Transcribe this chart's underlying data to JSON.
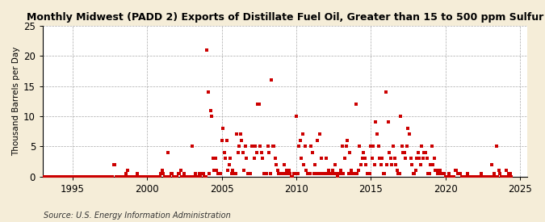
{
  "title": "Monthly Midwest (PADD 2) Exports of Distillate Fuel Oil, Greater than 15 to 500 ppm Sulfur",
  "ylabel": "Thousand Barrels per Day",
  "source": "Source: U.S. Energy Information Administration",
  "fig_bg_color": "#f5edd8",
  "plot_bg_color": "#ffffff",
  "marker_color": "#cc0000",
  "xlim": [
    1993.0,
    2025.5
  ],
  "ylim": [
    0,
    25
  ],
  "yticks": [
    0,
    5,
    10,
    15,
    20,
    25
  ],
  "xticks": [
    1995,
    2000,
    2005,
    2010,
    2015,
    2020,
    2025
  ],
  "data": [
    [
      1993.0,
      0
    ],
    [
      1993.083,
      0
    ],
    [
      1993.167,
      0
    ],
    [
      1993.25,
      0
    ],
    [
      1993.333,
      0
    ],
    [
      1993.417,
      0
    ],
    [
      1993.5,
      0
    ],
    [
      1993.583,
      0
    ],
    [
      1993.667,
      0
    ],
    [
      1993.75,
      0
    ],
    [
      1993.833,
      0
    ],
    [
      1993.917,
      0
    ],
    [
      1994.0,
      0
    ],
    [
      1994.083,
      0
    ],
    [
      1994.167,
      0
    ],
    [
      1994.25,
      0
    ],
    [
      1994.333,
      0
    ],
    [
      1994.417,
      0
    ],
    [
      1994.5,
      0
    ],
    [
      1994.583,
      0
    ],
    [
      1994.667,
      0
    ],
    [
      1994.75,
      0
    ],
    [
      1994.833,
      0
    ],
    [
      1994.917,
      0
    ],
    [
      1995.0,
      0
    ],
    [
      1995.083,
      0
    ],
    [
      1995.167,
      0
    ],
    [
      1995.25,
      0
    ],
    [
      1995.333,
      0
    ],
    [
      1995.417,
      0
    ],
    [
      1995.5,
      0
    ],
    [
      1995.583,
      0
    ],
    [
      1995.667,
      0
    ],
    [
      1995.75,
      0
    ],
    [
      1995.833,
      0
    ],
    [
      1995.917,
      0
    ],
    [
      1996.0,
      0
    ],
    [
      1996.083,
      0
    ],
    [
      1996.167,
      0
    ],
    [
      1996.25,
      0
    ],
    [
      1996.333,
      0
    ],
    [
      1996.417,
      0
    ],
    [
      1996.5,
      0
    ],
    [
      1996.583,
      0
    ],
    [
      1996.667,
      0
    ],
    [
      1996.75,
      0
    ],
    [
      1996.833,
      0
    ],
    [
      1996.917,
      0
    ],
    [
      1997.0,
      0
    ],
    [
      1997.083,
      0
    ],
    [
      1997.167,
      0
    ],
    [
      1997.25,
      0
    ],
    [
      1997.333,
      0
    ],
    [
      1997.417,
      0
    ],
    [
      1997.5,
      0
    ],
    [
      1997.583,
      0
    ],
    [
      1997.667,
      0
    ],
    [
      1997.75,
      2.0
    ],
    [
      1997.833,
      2.0
    ],
    [
      1997.917,
      0
    ],
    [
      1998.0,
      0
    ],
    [
      1998.083,
      0
    ],
    [
      1998.167,
      0
    ],
    [
      1998.25,
      0
    ],
    [
      1998.333,
      0
    ],
    [
      1998.417,
      0
    ],
    [
      1998.5,
      0
    ],
    [
      1998.583,
      0.5
    ],
    [
      1998.667,
      1.0
    ],
    [
      1998.75,
      0
    ],
    [
      1998.833,
      0
    ],
    [
      1998.917,
      0
    ],
    [
      1999.0,
      0
    ],
    [
      1999.083,
      0
    ],
    [
      1999.167,
      0
    ],
    [
      1999.25,
      0
    ],
    [
      1999.333,
      0.5
    ],
    [
      1999.417,
      0
    ],
    [
      1999.5,
      0
    ],
    [
      1999.583,
      0
    ],
    [
      1999.667,
      0
    ],
    [
      1999.75,
      0
    ],
    [
      1999.833,
      0
    ],
    [
      1999.917,
      0
    ],
    [
      2000.0,
      0
    ],
    [
      2000.083,
      0
    ],
    [
      2000.167,
      0
    ],
    [
      2000.25,
      0
    ],
    [
      2000.333,
      0
    ],
    [
      2000.417,
      0
    ],
    [
      2000.5,
      0
    ],
    [
      2000.583,
      0
    ],
    [
      2000.667,
      0
    ],
    [
      2000.75,
      0
    ],
    [
      2000.833,
      0
    ],
    [
      2000.917,
      0.5
    ],
    [
      2001.0,
      1.0
    ],
    [
      2001.083,
      0.5
    ],
    [
      2001.167,
      0
    ],
    [
      2001.25,
      0
    ],
    [
      2001.333,
      0
    ],
    [
      2001.417,
      4.0
    ],
    [
      2001.5,
      0
    ],
    [
      2001.583,
      0.5
    ],
    [
      2001.667,
      0.5
    ],
    [
      2001.75,
      0
    ],
    [
      2001.833,
      0
    ],
    [
      2001.917,
      0
    ],
    [
      2002.0,
      0
    ],
    [
      2002.083,
      0.5
    ],
    [
      2002.167,
      0.5
    ],
    [
      2002.25,
      1.0
    ],
    [
      2002.333,
      0
    ],
    [
      2002.417,
      0
    ],
    [
      2002.5,
      0.5
    ],
    [
      2002.583,
      0
    ],
    [
      2002.667,
      0
    ],
    [
      2002.75,
      0
    ],
    [
      2002.833,
      0
    ],
    [
      2002.917,
      0
    ],
    [
      2003.0,
      5.0
    ],
    [
      2003.083,
      0
    ],
    [
      2003.167,
      0
    ],
    [
      2003.25,
      0.5
    ],
    [
      2003.333,
      0
    ],
    [
      2003.417,
      0
    ],
    [
      2003.5,
      0.5
    ],
    [
      2003.583,
      0
    ],
    [
      2003.667,
      0.5
    ],
    [
      2003.75,
      0.5
    ],
    [
      2003.833,
      0
    ],
    [
      2003.917,
      0
    ],
    [
      2004.0,
      21.0
    ],
    [
      2004.083,
      14.0
    ],
    [
      2004.167,
      0.5
    ],
    [
      2004.25,
      11.0
    ],
    [
      2004.333,
      10.0
    ],
    [
      2004.417,
      3.0
    ],
    [
      2004.5,
      1.0
    ],
    [
      2004.583,
      3.0
    ],
    [
      2004.667,
      1.0
    ],
    [
      2004.75,
      0.5
    ],
    [
      2004.833,
      0.5
    ],
    [
      2004.917,
      0.5
    ],
    [
      2005.0,
      6.0
    ],
    [
      2005.083,
      8.0
    ],
    [
      2005.167,
      4.0
    ],
    [
      2005.25,
      3.0
    ],
    [
      2005.333,
      6.0
    ],
    [
      2005.417,
      1.0
    ],
    [
      2005.5,
      2.0
    ],
    [
      2005.583,
      3.0
    ],
    [
      2005.667,
      0.5
    ],
    [
      2005.75,
      1.0
    ],
    [
      2005.833,
      0.5
    ],
    [
      2005.917,
      0.5
    ],
    [
      2006.0,
      7.0
    ],
    [
      2006.083,
      4.0
    ],
    [
      2006.167,
      5.0
    ],
    [
      2006.25,
      7.0
    ],
    [
      2006.333,
      6.0
    ],
    [
      2006.417,
      4.0
    ],
    [
      2006.5,
      1.0
    ],
    [
      2006.583,
      5.0
    ],
    [
      2006.667,
      3.0
    ],
    [
      2006.75,
      0.5
    ],
    [
      2006.833,
      0.5
    ],
    [
      2006.917,
      0.5
    ],
    [
      2007.0,
      5.0
    ],
    [
      2007.083,
      5.0
    ],
    [
      2007.167,
      3.0
    ],
    [
      2007.25,
      5.0
    ],
    [
      2007.333,
      4.0
    ],
    [
      2007.417,
      12.0
    ],
    [
      2007.5,
      12.0
    ],
    [
      2007.583,
      5.0
    ],
    [
      2007.667,
      4.0
    ],
    [
      2007.75,
      3.0
    ],
    [
      2007.833,
      0.5
    ],
    [
      2007.917,
      0.5
    ],
    [
      2008.0,
      0.5
    ],
    [
      2008.083,
      5.0
    ],
    [
      2008.167,
      4.0
    ],
    [
      2008.25,
      0.5
    ],
    [
      2008.333,
      16.0
    ],
    [
      2008.417,
      5.0
    ],
    [
      2008.5,
      5.0
    ],
    [
      2008.583,
      3.0
    ],
    [
      2008.667,
      2.0
    ],
    [
      2008.75,
      1.0
    ],
    [
      2008.833,
      0.5
    ],
    [
      2008.917,
      0.5
    ],
    [
      2009.0,
      0.5
    ],
    [
      2009.083,
      0.5
    ],
    [
      2009.167,
      2.0
    ],
    [
      2009.25,
      0.5
    ],
    [
      2009.333,
      1.0
    ],
    [
      2009.417,
      0.5
    ],
    [
      2009.5,
      1.0
    ],
    [
      2009.583,
      0.5
    ],
    [
      2009.667,
      0
    ],
    [
      2009.75,
      0
    ],
    [
      2009.833,
      0.5
    ],
    [
      2009.917,
      0.5
    ],
    [
      2010.0,
      10.0
    ],
    [
      2010.083,
      0.5
    ],
    [
      2010.167,
      5.0
    ],
    [
      2010.25,
      6.0
    ],
    [
      2010.333,
      3.0
    ],
    [
      2010.417,
      7.0
    ],
    [
      2010.5,
      2.0
    ],
    [
      2010.583,
      5.0
    ],
    [
      2010.667,
      1.0
    ],
    [
      2010.75,
      0.5
    ],
    [
      2010.833,
      0.5
    ],
    [
      2010.917,
      0.5
    ],
    [
      2011.0,
      5.0
    ],
    [
      2011.083,
      4.0
    ],
    [
      2011.167,
      0.5
    ],
    [
      2011.25,
      2.0
    ],
    [
      2011.333,
      0.5
    ],
    [
      2011.417,
      6.0
    ],
    [
      2011.5,
      0.5
    ],
    [
      2011.583,
      7.0
    ],
    [
      2011.667,
      3.0
    ],
    [
      2011.75,
      0.5
    ],
    [
      2011.833,
      0.5
    ],
    [
      2011.917,
      0.5
    ],
    [
      2012.0,
      3.0
    ],
    [
      2012.083,
      0.5
    ],
    [
      2012.167,
      1.0
    ],
    [
      2012.25,
      0.5
    ],
    [
      2012.333,
      0.5
    ],
    [
      2012.417,
      1.0
    ],
    [
      2012.5,
      0.5
    ],
    [
      2012.583,
      2.0
    ],
    [
      2012.667,
      0.5
    ],
    [
      2012.75,
      0
    ],
    [
      2012.833,
      0.5
    ],
    [
      2012.917,
      0.5
    ],
    [
      2013.0,
      1.0
    ],
    [
      2013.083,
      5.0
    ],
    [
      2013.167,
      0.5
    ],
    [
      2013.25,
      3.0
    ],
    [
      2013.333,
      5.0
    ],
    [
      2013.417,
      6.0
    ],
    [
      2013.5,
      0.5
    ],
    [
      2013.583,
      4.0
    ],
    [
      2013.667,
      1.0
    ],
    [
      2013.75,
      0.5
    ],
    [
      2013.833,
      0.5
    ],
    [
      2013.917,
      0.5
    ],
    [
      2014.0,
      12.0
    ],
    [
      2014.083,
      0.5
    ],
    [
      2014.167,
      1.0
    ],
    [
      2014.25,
      5.0
    ],
    [
      2014.333,
      2.0
    ],
    [
      2014.417,
      3.0
    ],
    [
      2014.5,
      4.0
    ],
    [
      2014.583,
      3.0
    ],
    [
      2014.667,
      2.0
    ],
    [
      2014.75,
      0.5
    ],
    [
      2014.833,
      0.5
    ],
    [
      2014.917,
      0.5
    ],
    [
      2015.0,
      5.0
    ],
    [
      2015.083,
      3.0
    ],
    [
      2015.167,
      5.0
    ],
    [
      2015.25,
      2.0
    ],
    [
      2015.333,
      9.0
    ],
    [
      2015.417,
      7.0
    ],
    [
      2015.5,
      5.0
    ],
    [
      2015.583,
      3.0
    ],
    [
      2015.667,
      2.0
    ],
    [
      2015.75,
      3.0
    ],
    [
      2015.833,
      0.5
    ],
    [
      2015.917,
      0.5
    ],
    [
      2016.0,
      14.0
    ],
    [
      2016.083,
      2.0
    ],
    [
      2016.167,
      9.0
    ],
    [
      2016.25,
      4.0
    ],
    [
      2016.333,
      3.0
    ],
    [
      2016.417,
      2.0
    ],
    [
      2016.5,
      5.0
    ],
    [
      2016.583,
      3.0
    ],
    [
      2016.667,
      2.0
    ],
    [
      2016.75,
      1.0
    ],
    [
      2016.833,
      0.5
    ],
    [
      2016.917,
      0.5
    ],
    [
      2017.0,
      10.0
    ],
    [
      2017.083,
      5.0
    ],
    [
      2017.167,
      4.0
    ],
    [
      2017.25,
      4.0
    ],
    [
      2017.333,
      3.0
    ],
    [
      2017.417,
      5.0
    ],
    [
      2017.5,
      8.0
    ],
    [
      2017.583,
      7.0
    ],
    [
      2017.667,
      3.0
    ],
    [
      2017.75,
      2.0
    ],
    [
      2017.833,
      0.5
    ],
    [
      2017.917,
      0.5
    ],
    [
      2018.0,
      1.0
    ],
    [
      2018.083,
      3.0
    ],
    [
      2018.167,
      4.0
    ],
    [
      2018.25,
      3.0
    ],
    [
      2018.333,
      2.0
    ],
    [
      2018.417,
      5.0
    ],
    [
      2018.5,
      3.0
    ],
    [
      2018.583,
      4.0
    ],
    [
      2018.667,
      4.0
    ],
    [
      2018.75,
      3.0
    ],
    [
      2018.833,
      0.5
    ],
    [
      2018.917,
      0.5
    ],
    [
      2019.0,
      2.0
    ],
    [
      2019.083,
      5.0
    ],
    [
      2019.167,
      2.0
    ],
    [
      2019.25,
      3.0
    ],
    [
      2019.333,
      1.0
    ],
    [
      2019.417,
      1.0
    ],
    [
      2019.5,
      0.5
    ],
    [
      2019.583,
      0.5
    ],
    [
      2019.667,
      1.0
    ],
    [
      2019.75,
      0.5
    ],
    [
      2019.833,
      0.5
    ],
    [
      2019.917,
      0.5
    ],
    [
      2020.0,
      0
    ],
    [
      2020.083,
      0
    ],
    [
      2020.167,
      0
    ],
    [
      2020.25,
      0.5
    ],
    [
      2020.333,
      0
    ],
    [
      2020.417,
      0
    ],
    [
      2020.5,
      0
    ],
    [
      2020.583,
      0
    ],
    [
      2020.667,
      1.0
    ],
    [
      2020.75,
      1.0
    ],
    [
      2020.833,
      0.5
    ],
    [
      2020.917,
      0.5
    ],
    [
      2021.0,
      0.5
    ],
    [
      2021.083,
      0
    ],
    [
      2021.167,
      0
    ],
    [
      2021.25,
      0
    ],
    [
      2021.333,
      0
    ],
    [
      2021.417,
      0
    ],
    [
      2021.5,
      0.5
    ],
    [
      2021.583,
      0
    ],
    [
      2021.667,
      0
    ],
    [
      2021.75,
      0
    ],
    [
      2021.833,
      0
    ],
    [
      2021.917,
      0
    ],
    [
      2022.0,
      0
    ],
    [
      2022.083,
      0
    ],
    [
      2022.167,
      0
    ],
    [
      2022.25,
      0
    ],
    [
      2022.333,
      0
    ],
    [
      2022.417,
      0.5
    ],
    [
      2022.5,
      0
    ],
    [
      2022.583,
      0
    ],
    [
      2022.667,
      0
    ],
    [
      2022.75,
      0
    ],
    [
      2022.833,
      0
    ],
    [
      2022.917,
      0
    ],
    [
      2023.0,
      0
    ],
    [
      2023.083,
      2.0
    ],
    [
      2023.167,
      0
    ],
    [
      2023.25,
      0.5
    ],
    [
      2023.333,
      0
    ],
    [
      2023.417,
      5.0
    ],
    [
      2023.5,
      0
    ],
    [
      2023.583,
      1.0
    ],
    [
      2023.667,
      0.5
    ],
    [
      2023.75,
      0
    ],
    [
      2023.833,
      0
    ],
    [
      2023.917,
      0
    ],
    [
      2024.0,
      0
    ],
    [
      2024.083,
      1.0
    ],
    [
      2024.167,
      0
    ],
    [
      2024.25,
      0.5
    ],
    [
      2024.333,
      0.5
    ],
    [
      2024.417,
      0
    ]
  ]
}
